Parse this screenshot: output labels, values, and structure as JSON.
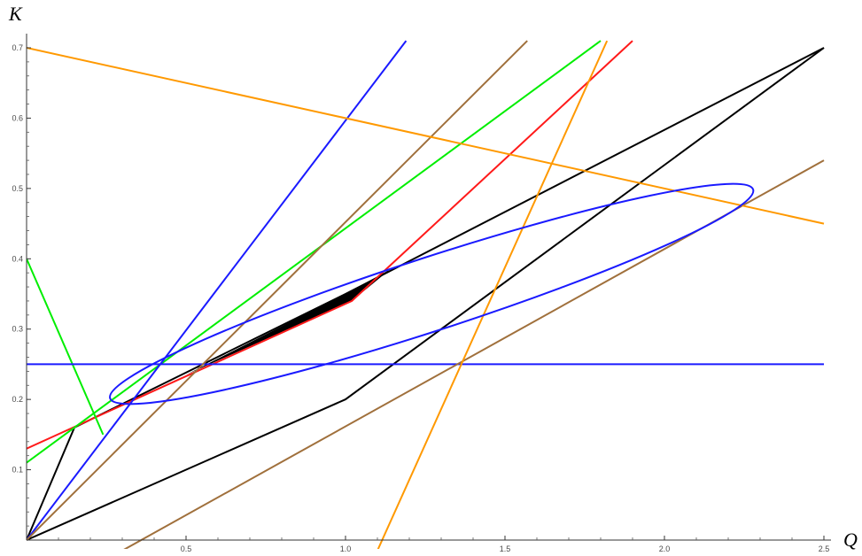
{
  "chart_data": {
    "type": "line",
    "title": "",
    "xlabel": "Q",
    "ylabel": "K",
    "xlim": [
      0,
      2.5
    ],
    "ylim": [
      0,
      0.7
    ],
    "xticks": [
      0.5,
      1.0,
      1.5,
      2.0,
      2.5
    ],
    "xtick_labels": [
      "0.5",
      "1.0",
      "1.5",
      "2.0",
      "2.5"
    ],
    "yticks": [
      0.1,
      0.2,
      0.3,
      0.4,
      0.5,
      0.6,
      0.7
    ],
    "ytick_labels": [
      "0.1",
      "0.2",
      "0.3",
      "0.4",
      "0.5",
      "0.6",
      "0.7"
    ],
    "grid": false,
    "legend": false,
    "series": [
      {
        "color": "#000000",
        "kind": "polyline",
        "points": [
          [
            0,
            0
          ],
          [
            1.0,
            0.2
          ],
          [
            2.5,
            0.7
          ]
        ]
      },
      {
        "color": "#000000",
        "kind": "polyline",
        "points": [
          [
            0,
            0
          ],
          [
            0.15,
            0.16
          ],
          [
            1.0,
            0.35
          ],
          [
            2.5,
            0.7
          ]
        ]
      },
      {
        "color": "#ff1a1a",
        "kind": "polyline",
        "points": [
          [
            0,
            0.13
          ],
          [
            1.02,
            0.34
          ],
          [
            1.9,
            0.71
          ]
        ]
      },
      {
        "color": "#00ee00",
        "kind": "polyline",
        "points": [
          [
            0,
            0.11
          ],
          [
            1.8,
            0.71
          ]
        ]
      },
      {
        "color": "#00ee00",
        "kind": "polyline",
        "points": [
          [
            0,
            0.4
          ],
          [
            0.24,
            0.15
          ]
        ]
      },
      {
        "color": "#1a1aff",
        "kind": "polyline",
        "points": [
          [
            0,
            0
          ],
          [
            1.19,
            0.71
          ]
        ]
      },
      {
        "color": "#1a1aff",
        "kind": "polyline",
        "points": [
          [
            0,
            0.25
          ],
          [
            2.5,
            0.25
          ]
        ]
      },
      {
        "color": "#a0703c",
        "kind": "polyline",
        "points": [
          [
            0,
            0
          ],
          [
            1.57,
            0.71
          ]
        ]
      },
      {
        "color": "#a0703c",
        "kind": "polyline",
        "points": [
          [
            0.3,
            -0.015
          ],
          [
            2.5,
            0.54
          ]
        ]
      },
      {
        "color": "#ff9900",
        "kind": "polyline",
        "points": [
          [
            0,
            0.7
          ],
          [
            2.5,
            0.45
          ]
        ]
      },
      {
        "color": "#ff9900",
        "kind": "polyline",
        "points": [
          [
            1.1,
            -0.015
          ],
          [
            1.82,
            0.71
          ]
        ]
      },
      {
        "color": "#1a1aff",
        "kind": "ellipse",
        "center": [
          1.27,
          0.35
        ],
        "semi_major": 1.06,
        "semi_minor": 0.115,
        "rotation_deg": 18
      }
    ],
    "fill_region": {
      "color": "#000000",
      "points": [
        [
          0.5,
          0.235
        ],
        [
          1.0,
          0.35
        ],
        [
          1.14,
          0.385
        ],
        [
          1.02,
          0.34
        ]
      ]
    }
  }
}
